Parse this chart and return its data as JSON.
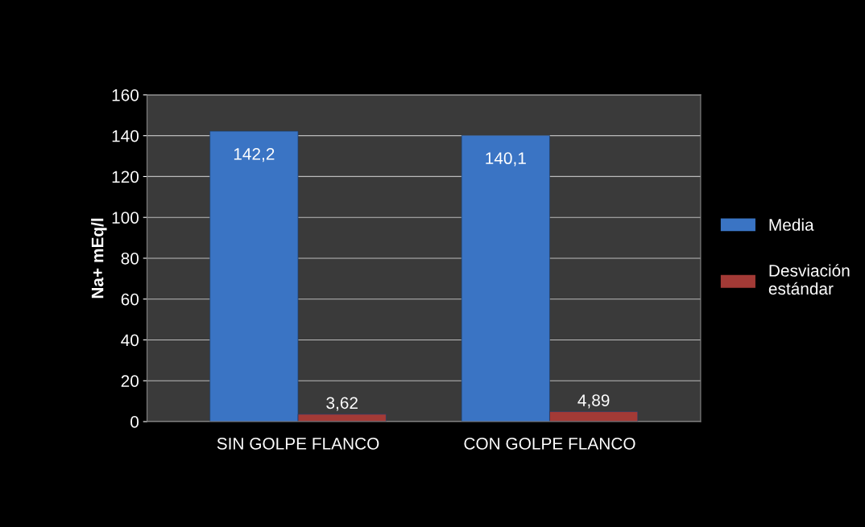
{
  "chart_data": {
    "type": "bar",
    "ylabel": "Na+ mEq/l",
    "categories": [
      "SIN GOLPE FLANCO",
      "CON GOLPE FLANCO"
    ],
    "series": [
      {
        "name": "Media",
        "color": "#3a74c4",
        "values": [
          142.2,
          140.1
        ],
        "value_labels": [
          "142,2",
          "140,1"
        ]
      },
      {
        "name": "Desviación estándar",
        "color": "#a33a36",
        "values": [
          3.62,
          4.89
        ],
        "value_labels": [
          "3,62",
          "4,89"
        ]
      }
    ],
    "ylim": [
      0,
      160
    ],
    "yticks": [
      0,
      20,
      40,
      60,
      80,
      100,
      120,
      140,
      160
    ],
    "grid": "y",
    "legend": "right"
  }
}
